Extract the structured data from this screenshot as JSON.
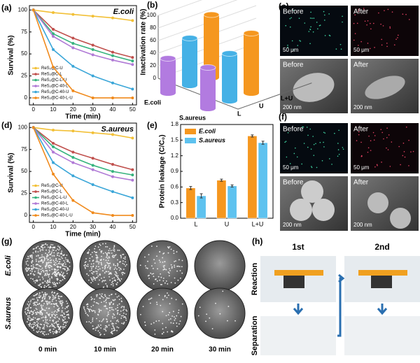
{
  "chart_data": [
    {
      "type": "line",
      "label": "(a)",
      "annotation": "E.coli",
      "xlabel": "Time (min)",
      "ylabel": "Survival (%)",
      "legend": "lower left",
      "x": [
        0,
        10,
        20,
        30,
        40,
        50
      ],
      "xlim": [
        -2,
        52
      ],
      "xticks": [
        0,
        10,
        20,
        30,
        40,
        50
      ],
      "ylim": [
        -8,
        105
      ],
      "yticks": [
        0,
        25,
        50,
        75,
        100
      ],
      "series": [
        {
          "name": "ReS₂@C-U",
          "color": "#f2c037",
          "values": [
            100,
            97,
            95,
            93,
            91,
            88
          ]
        },
        {
          "name": "ReS₂@C-L",
          "color": "#c0504d",
          "values": [
            100,
            78,
            68,
            60,
            52,
            46
          ]
        },
        {
          "name": "ReS₂@C-L-U",
          "color": "#36b37e",
          "values": [
            100,
            73,
            62,
            55,
            48,
            42
          ]
        },
        {
          "name": "ReS₂@C-40-L",
          "color": "#b07ad6",
          "values": [
            100,
            70,
            57,
            49,
            43,
            38
          ]
        },
        {
          "name": "ReS₂@C-40-U",
          "color": "#3aa6d8",
          "values": [
            100,
            55,
            36,
            25,
            17,
            10
          ]
        },
        {
          "name": "ReS₂@C-40-L-U",
          "color": "#f08a1c",
          "values": [
            100,
            35,
            8,
            0,
            0,
            0
          ]
        }
      ]
    },
    {
      "type": "bar3d",
      "label": "(b)",
      "ylabel": "Inactivation rate (%)",
      "categories": [
        "E.coli",
        "S.aureus"
      ],
      "ylim": [
        0,
        100
      ],
      "yticks": [
        0,
        20,
        40,
        60,
        80,
        100
      ],
      "series": [
        {
          "name": "L",
          "color": "#b27be0",
          "values": [
            55,
            65
          ]
        },
        {
          "name": "U",
          "color": "#45b1e6",
          "values": [
            75,
            75
          ]
        },
        {
          "name": "L+U",
          "color": "#f5971f",
          "values": [
            100,
            95
          ]
        }
      ]
    },
    {
      "type": "line",
      "label": "(d)",
      "annotation": "S.aureus",
      "xlabel": "Time (min)",
      "ylabel": "Survival (%)",
      "legend": "lower left",
      "x": [
        0,
        10,
        20,
        30,
        40,
        50
      ],
      "xlim": [
        -2,
        52
      ],
      "xticks": [
        0,
        10,
        20,
        30,
        40,
        50
      ],
      "ylim": [
        -8,
        105
      ],
      "yticks": [
        0,
        25,
        50,
        75,
        100
      ],
      "series": [
        {
          "name": "ReS₂@C-U",
          "color": "#f2c037",
          "values": [
            100,
            97,
            96,
            94,
            92,
            88
          ]
        },
        {
          "name": "ReS₂@C-L",
          "color": "#c0504d",
          "values": [
            100,
            82,
            72,
            65,
            58,
            52
          ]
        },
        {
          "name": "ReS₂@C-L-U",
          "color": "#36b37e",
          "values": [
            100,
            78,
            66,
            57,
            50,
            46
          ]
        },
        {
          "name": "ReS₂@C-40-L",
          "color": "#b07ad6",
          "values": [
            100,
            72,
            60,
            52,
            44,
            40
          ]
        },
        {
          "name": "ReS₂@C-40-U",
          "color": "#3aa6d8",
          "values": [
            100,
            60,
            45,
            35,
            27,
            20
          ]
        },
        {
          "name": "ReS₂@C-40-L-U",
          "color": "#f08a1c",
          "values": [
            100,
            47,
            17,
            3,
            0,
            0
          ]
        }
      ]
    },
    {
      "type": "bar",
      "label": "(e)",
      "ylabel": "Protein leakage (C/C₀)",
      "legend": "upper left",
      "categories": [
        "L",
        "U",
        "L+U"
      ],
      "ylim": [
        0,
        1.8
      ],
      "yticks": [
        {
          "value": 0,
          "label": "0.0"
        },
        0.3,
        0.6,
        0.9,
        1.2,
        1.5,
        1.8
      ],
      "series": [
        {
          "name": "E.coli",
          "color": "#f5971f",
          "values": [
            0.58,
            0.73,
            1.58
          ],
          "errors": [
            0.03,
            0.02,
            0.02
          ]
        },
        {
          "name": "S.aureus",
          "color": "#5ec2ef",
          "values": [
            0.43,
            0.62,
            1.45
          ],
          "errors": [
            0.04,
            0.02,
            0.03
          ]
        }
      ]
    }
  ],
  "panels": {
    "c": {
      "label": "(c)",
      "before": "Before",
      "after": "After",
      "before2": "Before",
      "after2": "After",
      "scale1": "50 μm",
      "scale2": "50 μm",
      "scale3": "200 nm",
      "scale4": "200 nm"
    },
    "f": {
      "label": "(f)",
      "before": "Before",
      "after": "After",
      "before2": "Before",
      "after2": "After",
      "scale1": "50 μm",
      "scale2": "50 μm",
      "scale3": "200 nm",
      "scale4": "200 nm"
    },
    "g": {
      "label": "(g)",
      "rows": [
        "E.coli",
        "S.aureus"
      ],
      "columns": [
        "0 min",
        "10 min",
        "20 min",
        "30 min"
      ]
    },
    "h": {
      "label": "(h)",
      "columns": [
        "1st",
        "2nd"
      ],
      "rows": [
        "Reaction",
        "Separation"
      ]
    }
  }
}
